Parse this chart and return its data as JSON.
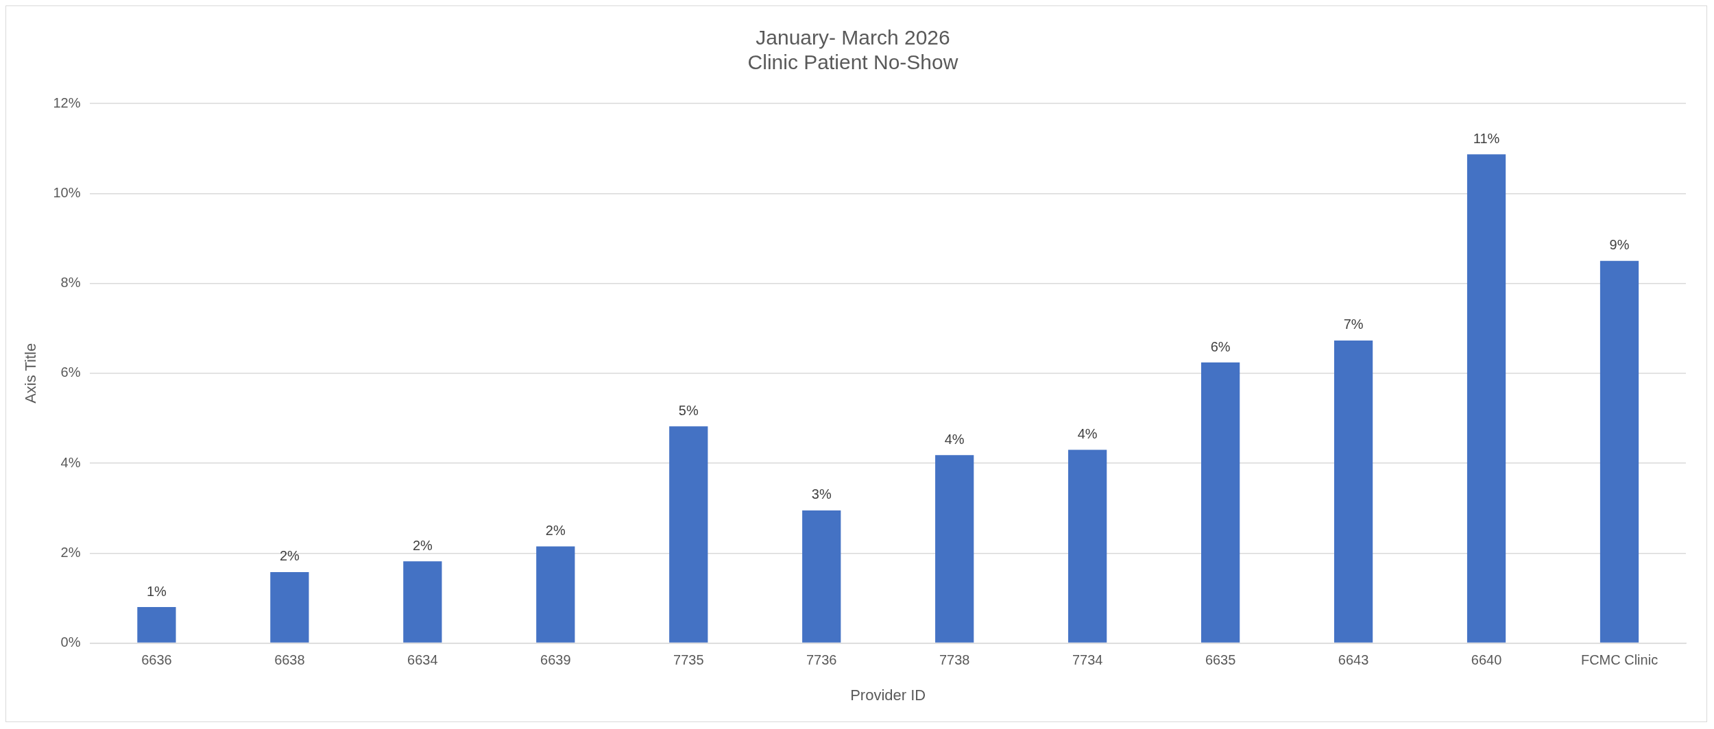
{
  "chart_data": {
    "type": "bar",
    "title": "January- March 2026\nClinic Patient No-Show",
    "xlabel": "Provider ID",
    "ylabel": "Axis Title",
    "categories": [
      "6636",
      "6638",
      "6634",
      "6639",
      "7735",
      "7736",
      "7738",
      "7734",
      "6635",
      "6643",
      "6640",
      "FCMC Clinic"
    ],
    "values": [
      0.8,
      1.58,
      1.82,
      2.15,
      4.82,
      2.95,
      4.18,
      4.3,
      6.24,
      6.73,
      10.87,
      8.5
    ],
    "value_labels": [
      "1%",
      "2%",
      "2%",
      "2%",
      "5%",
      "3%",
      "4%",
      "4%",
      "6%",
      "7%",
      "11%",
      "9%"
    ],
    "color": "#4472c4",
    "ylim": [
      0,
      12
    ],
    "yticks": [
      {
        "value": 0,
        "label": "0%"
      },
      {
        "value": 2,
        "label": "2%"
      },
      {
        "value": 4,
        "label": "4%"
      },
      {
        "value": 6,
        "label": "6%"
      },
      {
        "value": 8,
        "label": "8%"
      },
      {
        "value": 10,
        "label": "10%"
      },
      {
        "value": 12,
        "label": "12%"
      }
    ],
    "grid": "y",
    "legend": false
  }
}
